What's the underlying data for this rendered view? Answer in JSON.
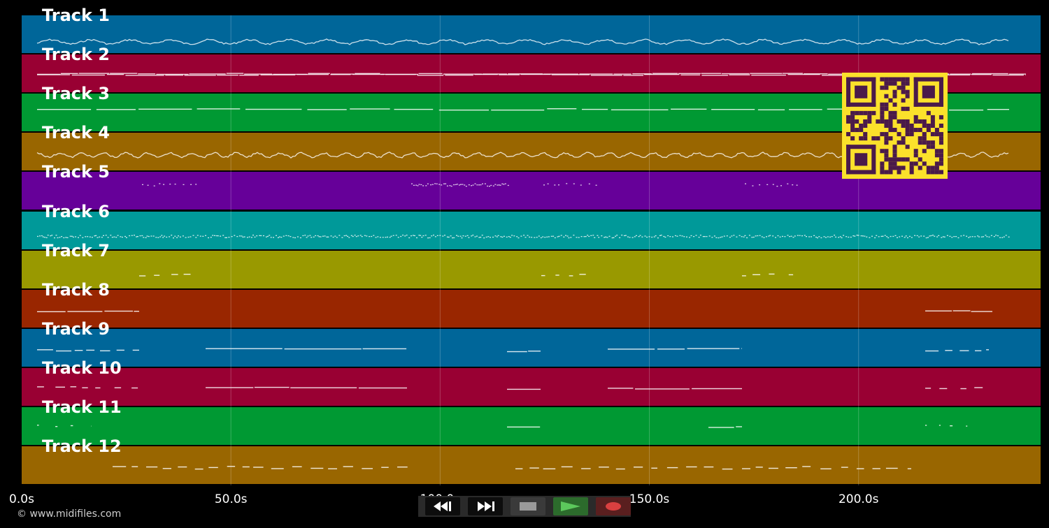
{
  "tracks": [
    {
      "name": "Track 1",
      "color": "#006699"
    },
    {
      "name": "Track 2",
      "color": "#990033"
    },
    {
      "name": "Track 3",
      "color": "#009933"
    },
    {
      "name": "Track 4",
      "color": "#996600"
    },
    {
      "name": "Track 5",
      "color": "#660099"
    },
    {
      "name": "Track 6",
      "color": "#009999"
    },
    {
      "name": "Track 7",
      "color": "#999900"
    },
    {
      "name": "Track 8",
      "color": "#992600"
    },
    {
      "name": "Track 9",
      "color": "#006699"
    },
    {
      "name": "Track 10",
      "color": "#990033"
    },
    {
      "name": "Track 11",
      "color": "#009933"
    },
    {
      "name": "Track 12",
      "color": "#996600"
    }
  ],
  "timeline": {
    "max_seconds": 243.5,
    "ticks": [
      {
        "seconds": 0,
        "label": "0.0s"
      },
      {
        "seconds": 50,
        "label": "50.0s"
      },
      {
        "seconds": 100,
        "label": "100.0s"
      },
      {
        "seconds": 150,
        "label": "150.0s"
      },
      {
        "seconds": 200,
        "label": "200.0s"
      }
    ]
  },
  "copyright": "© www.midifiles.com",
  "transport": {
    "rewind_icon": "rewind-icon",
    "ffwd_icon": "fast-forward-icon",
    "stop_icon": "stop-icon",
    "play_icon": "play-icon",
    "record_icon": "record-icon",
    "colors": {
      "stop": "#9a9a9a",
      "play": "#5cc85c",
      "record": "#d94040"
    }
  },
  "qr_code": {
    "fg": "#4a1a4a",
    "bg": "#fbe12b"
  }
}
